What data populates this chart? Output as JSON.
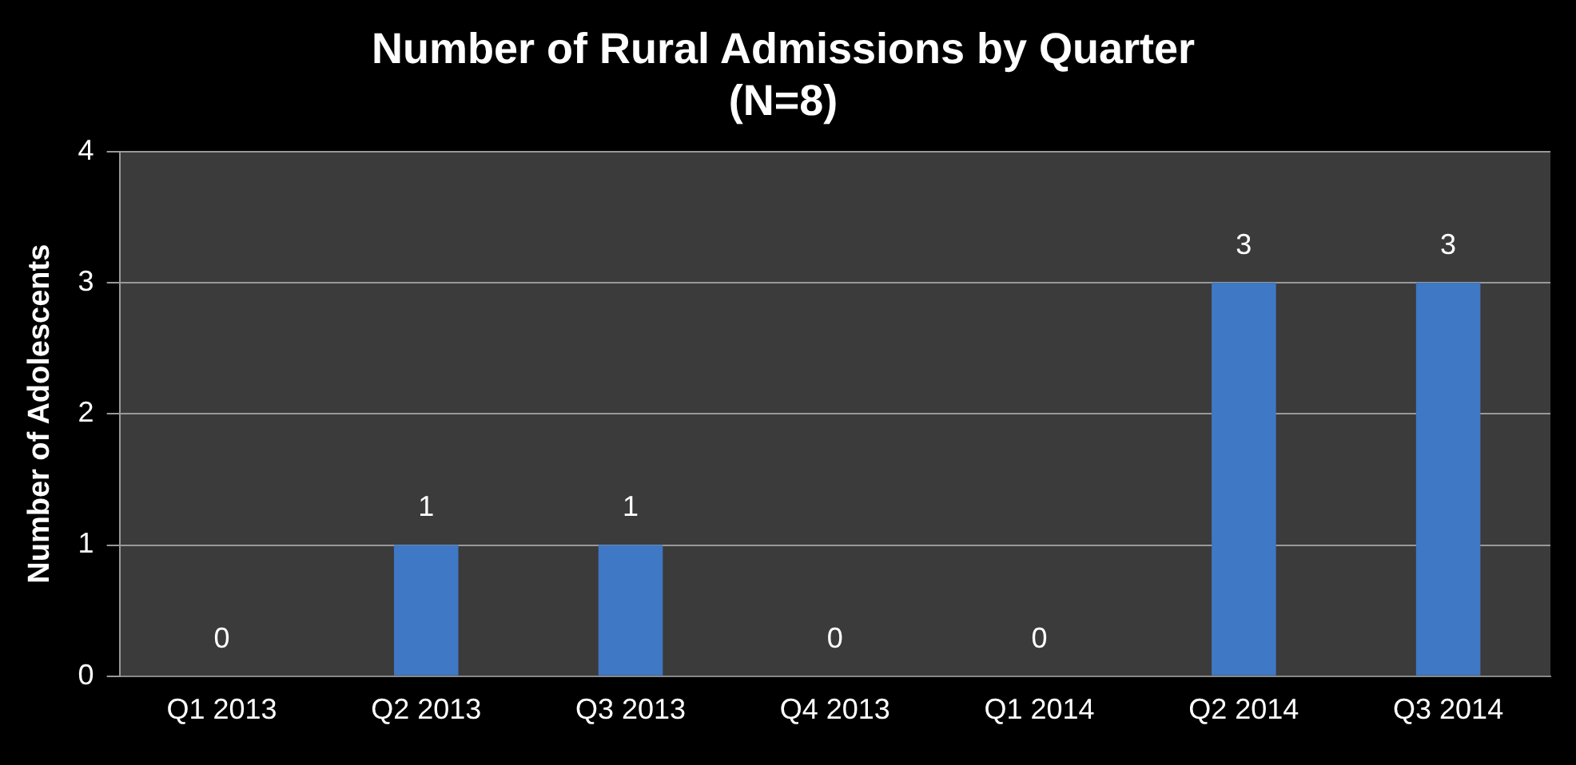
{
  "chart_data": {
    "type": "bar",
    "title": "Number of Rural Admissions by Quarter",
    "subtitle": "(N=8)",
    "ylabel": "Number of Adolescents",
    "categories": [
      "Q1 2013",
      "Q2 2013",
      "Q3 2013",
      "Q4 2013",
      "Q1 2014",
      "Q2 2014",
      "Q3 2014"
    ],
    "values": [
      0,
      1,
      1,
      0,
      0,
      3,
      3
    ],
    "color": "#3f78c4",
    "ylim": [
      0,
      4
    ],
    "yticks": [
      0,
      1,
      2,
      3,
      4
    ],
    "grid": "y",
    "data_labels": true,
    "legend": false
  }
}
